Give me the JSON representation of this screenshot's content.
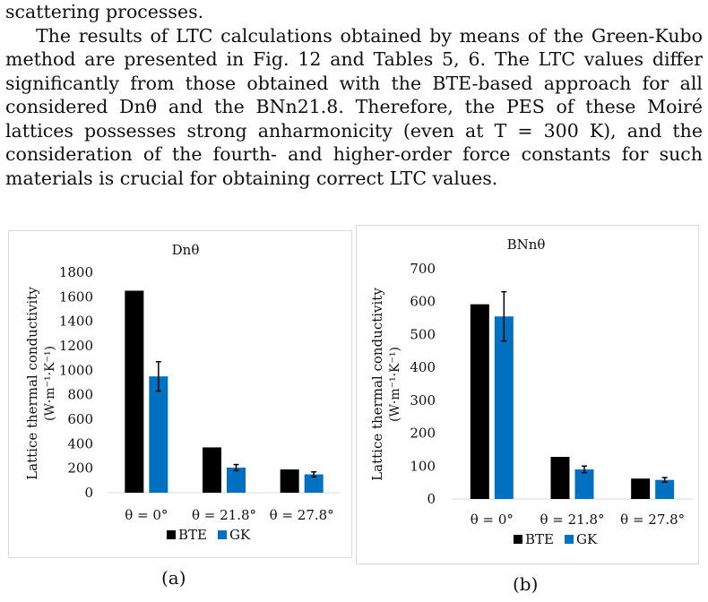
{
  "text": {
    "line0": "scattering processes.",
    "paragraph": "The results of LTC calculations obtained by means of the Green-Kubo method are presented in Fig. 12 and Tables 5, 6. The LTC values differ significantly from those obtained with the BTE-based approach for all considered Dnθ and the BNn21.8. Therefore, the PES of these Moiré lattices possesses strong anharmonicity (even at T = 300 K), and the consideration of the fourth- and higher-order force constants for such materials is crucial for obtaining correct LTC values."
  },
  "colors": {
    "bte": "#000000",
    "gk": "#0070c0",
    "grid": "#d9d9d9"
  },
  "chart_data": [
    {
      "type": "bar",
      "title": "Dnθ",
      "ylabel_line1": "Lattice thermal conductivity",
      "ylabel_line2": "(W·m⁻¹·K⁻¹)",
      "categories": [
        "θ = 0°",
        "θ = 21.8°",
        "θ = 27.8°"
      ],
      "ylim": [
        0,
        1800
      ],
      "yticks": [
        0,
        200,
        400,
        600,
        800,
        1000,
        1200,
        1400,
        1600,
        1800
      ],
      "series": [
        {
          "name": "BTE",
          "values": [
            1650,
            370,
            190
          ]
        },
        {
          "name": "GK",
          "values": [
            950,
            205,
            150
          ],
          "errors": [
            120,
            25,
            20
          ]
        }
      ],
      "legend": "bottom",
      "caption": "(a)"
    },
    {
      "type": "bar",
      "title": "BNnθ",
      "ylabel_line1": "Lattice thermal conductivity",
      "ylabel_line2": "(W·m⁻¹·K⁻¹)",
      "categories": [
        "θ = 0°",
        "θ = 21.8°",
        "θ = 27.8°"
      ],
      "ylim": [
        0,
        700
      ],
      "yticks": [
        0,
        100,
        200,
        300,
        400,
        500,
        600,
        700
      ],
      "series": [
        {
          "name": "BTE",
          "values": [
            592,
            128,
            62
          ]
        },
        {
          "name": "GK",
          "values": [
            555,
            90,
            58
          ],
          "errors": [
            75,
            10,
            7
          ]
        }
      ],
      "legend": "bottom",
      "caption": "(b)"
    }
  ]
}
